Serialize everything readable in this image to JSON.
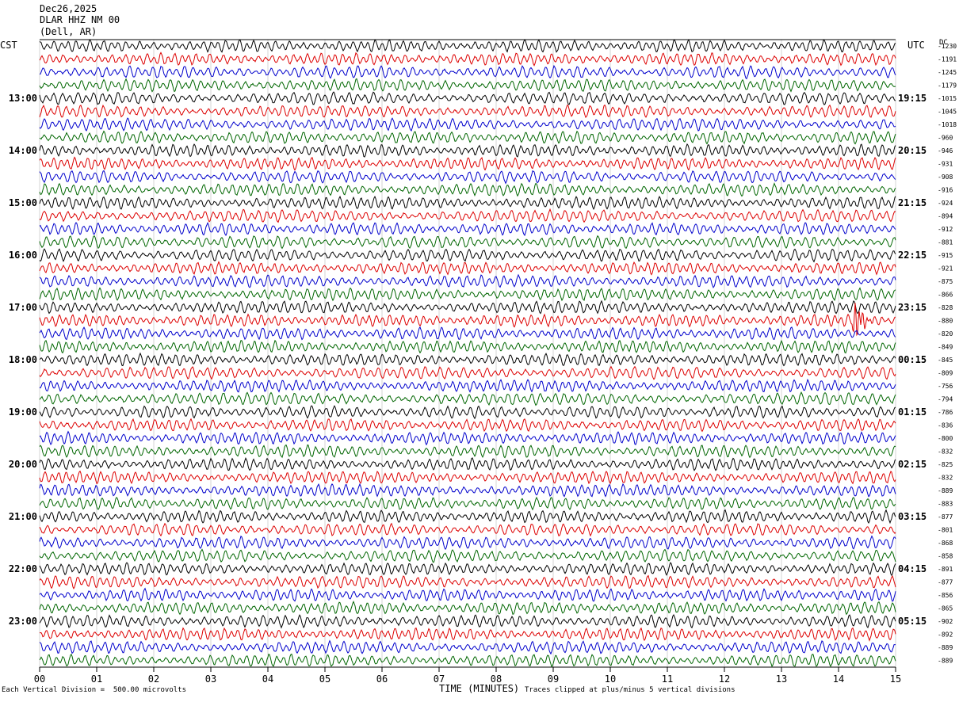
{
  "header": {
    "date": "Dec26,2025",
    "station": "DLAR HHZ NM 00",
    "location": "(Dell, AR)"
  },
  "axes": {
    "left_zone": "CST",
    "right_zone": "UTC",
    "dc_label": "DC",
    "x_label": "TIME (MINUTES)"
  },
  "footer": {
    "scale_note": "Each Vertical Division =  500.00 microvolts",
    "clip_note": "Traces clipped at plus/minus 5 vertical divisions"
  },
  "chart_data": {
    "type": "line",
    "title": "DLAR HHZ NM 00",
    "xlabel": "TIME (MINUTES)",
    "xlim": [
      0,
      15
    ],
    "x_ticks": [
      "00",
      "01",
      "02",
      "03",
      "04",
      "05",
      "06",
      "07",
      "08",
      "09",
      "10",
      "11",
      "12",
      "13",
      "14",
      "15"
    ],
    "left_time_labels": [
      "13:00",
      "14:00",
      "15:00",
      "16:00",
      "17:00",
      "18:00",
      "19:00",
      "20:00",
      "21:00",
      "22:00",
      "23:00"
    ],
    "right_time_labels": [
      "19:15",
      "20:15",
      "21:15",
      "22:15",
      "23:15",
      "00:15",
      "01:15",
      "02:15",
      "03:15",
      "04:15",
      "05:15"
    ],
    "dc_offsets": [
      -1230,
      -1191,
      -1245,
      -1179,
      -1015,
      -1045,
      -1018,
      -960,
      -946,
      -931,
      -908,
      -916,
      -924,
      -894,
      -912,
      -881,
      -915,
      -921,
      -875,
      -866,
      -828,
      -880,
      -820,
      -849,
      -845,
      -809,
      -756,
      -794,
      -786,
      -836,
      -800,
      -832,
      -825,
      -832,
      -889,
      -883,
      -877,
      -801,
      -868,
      -858,
      -891,
      -877,
      -856,
      -865,
      -902,
      -892,
      -889,
      -889
    ],
    "trace_colors": [
      "#000000",
      "#dd0000",
      "#0000cc",
      "#006600"
    ],
    "traces_per_hour": 4,
    "minutes_per_trace": 15,
    "trace_count": 48,
    "event": {
      "trace_index": 21,
      "minute": 14.3
    }
  }
}
